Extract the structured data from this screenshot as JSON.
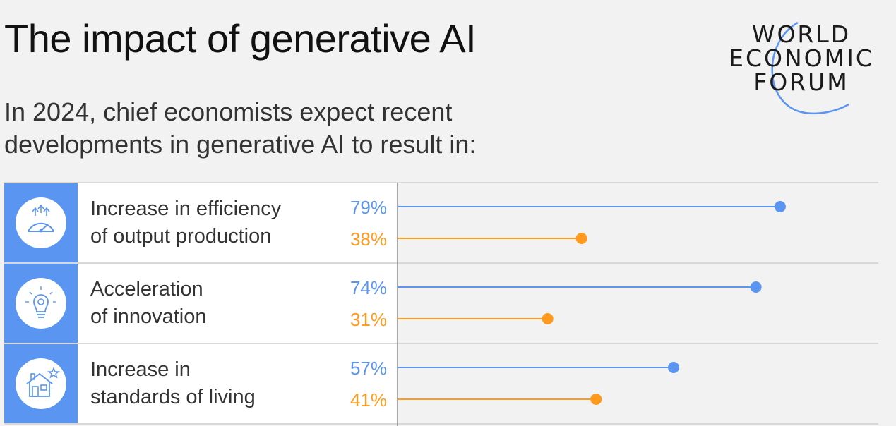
{
  "header": {
    "title": "The impact of generative AI",
    "subtitle": "In 2024, chief economists expect recent developments in generative AI to result in:"
  },
  "logo": {
    "lines": [
      "WORLD",
      "ECONOMIC",
      "FORUM"
    ],
    "accent": "#5b95f2"
  },
  "colors": {
    "series_blue": "#5b95f2",
    "series_orange": "#ff9a1f",
    "icon_panel": "#5b95f2"
  },
  "chart_data": {
    "type": "dot-plot",
    "categories": [
      "Increase in efficiency of output production",
      "Acceleration of innovation",
      "Increase in standards of living"
    ],
    "series": [
      {
        "values": [
          79,
          74,
          57
        ],
        "labels": [
          "79%",
          "74%",
          "57%"
        ],
        "color": "#5b95f2"
      },
      {
        "values": [
          38,
          31,
          41
        ],
        "labels": [
          "38%",
          "31%",
          "41%"
        ],
        "color": "#ff9a1f"
      }
    ],
    "unit": "%",
    "xlim": [
      0,
      100
    ]
  },
  "rows": [
    {
      "label_line1": "Increase in efficiency",
      "label_line2": "of output production",
      "icon": "speedometer-icon"
    },
    {
      "label_line1": "Acceleration",
      "label_line2": "of innovation",
      "icon": "lightbulb-gear-icon"
    },
    {
      "label_line1": "Increase in",
      "label_line2": "standards of living",
      "icon": "house-star-icon"
    }
  ]
}
